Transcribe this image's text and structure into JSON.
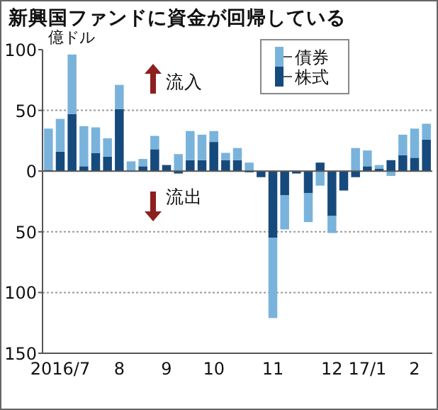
{
  "chart_data": {
    "type": "bar",
    "title": "新興国ファンドに資金が回帰している",
    "ylabel": "億ドル",
    "categories": [
      null,
      "2016/7",
      null,
      null,
      null,
      null,
      "8",
      null,
      null,
      null,
      "9",
      null,
      null,
      null,
      "10",
      null,
      null,
      null,
      null,
      "11",
      null,
      null,
      null,
      null,
      "12",
      null,
      null,
      "17/1",
      null,
      null,
      null,
      "2",
      null
    ],
    "stacked": true,
    "series": [
      {
        "name": "株式",
        "color": "#174a7c",
        "values": [
          1,
          16,
          47,
          4,
          15,
          12,
          51,
          0,
          4,
          18,
          5,
          -2,
          9,
          9,
          24,
          9,
          9,
          -1,
          -5,
          -55,
          -20,
          -2,
          -18,
          7,
          -37,
          -16,
          -5,
          4,
          2,
          9,
          13,
          11,
          26
        ]
      },
      {
        "name": "債券",
        "color": "#79b3dc",
        "values": [
          34,
          27,
          49,
          33,
          21,
          15,
          20,
          8,
          6,
          11,
          0,
          14,
          24,
          21,
          9,
          6,
          10,
          7,
          0,
          -66,
          -28,
          0,
          -24,
          -12,
          -14,
          0,
          19,
          13,
          3,
          -4,
          17,
          24,
          13
        ]
      }
    ],
    "ylim": [
      -150,
      100
    ],
    "yticks": [
      100,
      50,
      0,
      {
        "value": -50,
        "label": "50"
      },
      {
        "value": -100,
        "label": "100"
      },
      {
        "value": -150,
        "label": "150"
      }
    ],
    "grid": "y",
    "legend": "top right",
    "annotations": [
      "流入",
      "流出"
    ]
  }
}
